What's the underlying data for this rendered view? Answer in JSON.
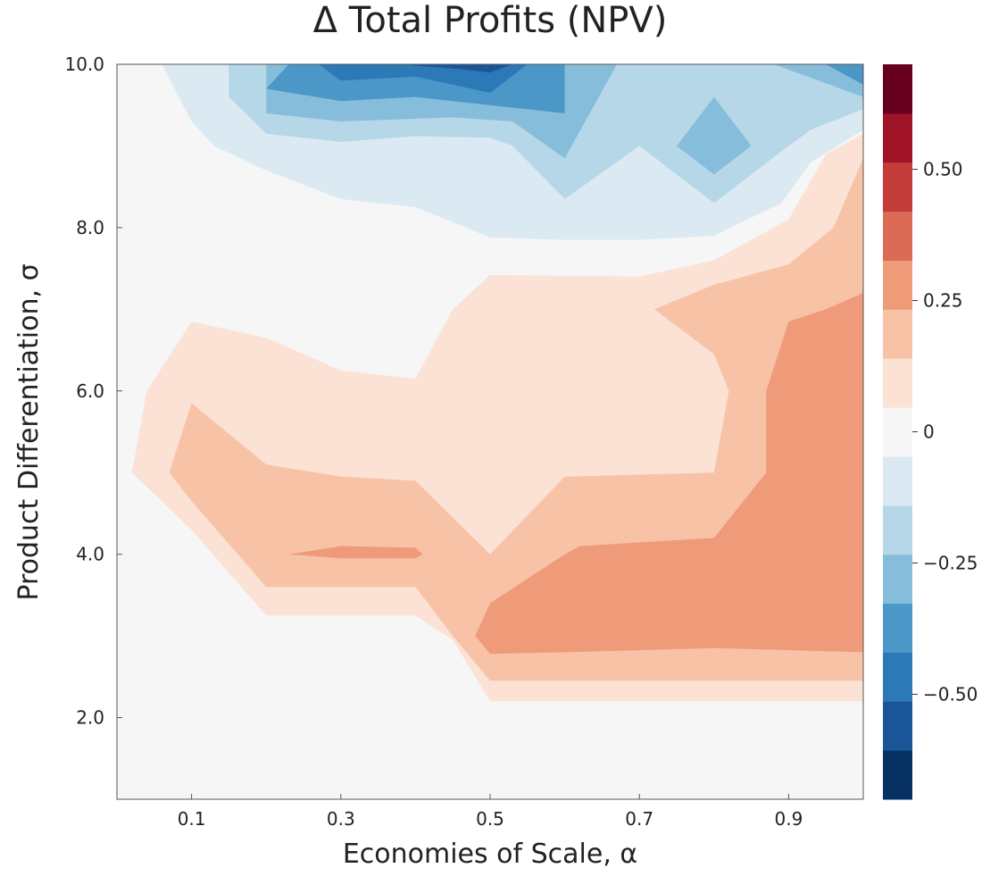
{
  "chart_data": {
    "type": "contour",
    "title": "Δ Total Profits (NPV)",
    "xlabel": "Economies of Scale, α",
    "ylabel": "Product Differentiation, σ",
    "xlim": [
      0.0,
      1.0
    ],
    "ylim": [
      1.0,
      10.0
    ],
    "x_ticks": [
      0.1,
      0.3,
      0.5,
      0.7,
      0.9
    ],
    "x_tick_labels": [
      "0.1",
      "0.3",
      "0.5",
      "0.7",
      "0.9"
    ],
    "y_ticks": [
      2.0,
      4.0,
      6.0,
      8.0,
      10.0
    ],
    "y_tick_labels": [
      "2.0",
      "4.0",
      "6.0",
      "8.0",
      "10.0"
    ],
    "colorbar": {
      "min": -0.7,
      "max": 0.7,
      "levels": [
        -0.7,
        -0.6,
        -0.5,
        -0.4,
        -0.3,
        -0.2,
        -0.1,
        0.0,
        0.1,
        0.2,
        0.3,
        0.4,
        0.5,
        0.6,
        0.7
      ],
      "colors": [
        "#053061",
        "#1a5598",
        "#2c79b7",
        "#4b97c8",
        "#86bddb",
        "#b6d7e8",
        "#dbeaf2",
        "#f6f6f6",
        "#fbe2d4",
        "#f8c2a7",
        "#ef9b7a",
        "#dc6b55",
        "#c23d3a",
        "#a11428",
        "#67001f"
      ],
      "ticks": [
        -0.5,
        -0.25,
        0,
        0.25,
        0.5
      ],
      "tick_labels": [
        "−0.50",
        "−0.25",
        "0",
        "0.25",
        "0.50"
      ]
    },
    "regions": [
      {
        "level": 0.0,
        "points": [
          [
            0.0,
            1.0
          ],
          [
            1.0,
            1.0
          ],
          [
            1.0,
            10.0
          ],
          [
            0.0,
            10.0
          ]
        ]
      },
      {
        "level": -0.1,
        "points": [
          [
            0.06,
            10.0
          ],
          [
            1.0,
            10.0
          ],
          [
            1.0,
            9.2
          ],
          [
            0.93,
            8.8
          ],
          [
            0.89,
            8.3
          ],
          [
            0.8,
            7.9
          ],
          [
            0.7,
            7.85
          ],
          [
            0.6,
            7.85
          ],
          [
            0.5,
            7.88
          ],
          [
            0.4,
            8.25
          ],
          [
            0.3,
            8.35
          ],
          [
            0.2,
            8.7
          ],
          [
            0.13,
            9.0
          ],
          [
            0.1,
            9.3
          ]
        ]
      },
      {
        "level": -0.2,
        "points": [
          [
            0.15,
            10.0
          ],
          [
            1.0,
            10.0
          ],
          [
            1.0,
            9.45
          ],
          [
            0.93,
            9.2
          ],
          [
            0.9,
            9.0
          ],
          [
            0.8,
            8.3
          ],
          [
            0.7,
            9.0
          ],
          [
            0.6,
            8.35
          ],
          [
            0.53,
            9.0
          ],
          [
            0.5,
            9.1
          ],
          [
            0.4,
            9.12
          ],
          [
            0.3,
            9.05
          ],
          [
            0.2,
            9.15
          ],
          [
            0.15,
            9.6
          ]
        ]
      },
      {
        "level": -0.3,
        "points": [
          [
            0.2,
            10.0
          ],
          [
            0.67,
            10.0
          ],
          [
            0.6,
            8.85
          ],
          [
            0.53,
            9.3
          ],
          [
            0.45,
            9.35
          ],
          [
            0.3,
            9.3
          ],
          [
            0.2,
            9.4
          ]
        ]
      },
      {
        "level": -0.3,
        "points": [
          [
            0.75,
            9.0
          ],
          [
            0.8,
            9.6
          ],
          [
            0.85,
            9.0
          ],
          [
            0.8,
            8.65
          ]
        ]
      },
      {
        "level": -0.3,
        "points": [
          [
            0.88,
            10.0
          ],
          [
            1.0,
            10.0
          ],
          [
            1.0,
            9.6
          ]
        ]
      },
      {
        "level": -0.4,
        "points": [
          [
            0.23,
            10.0
          ],
          [
            0.6,
            10.0
          ],
          [
            0.6,
            9.4
          ],
          [
            0.5,
            9.5
          ],
          [
            0.4,
            9.6
          ],
          [
            0.3,
            9.55
          ],
          [
            0.2,
            9.7
          ]
        ]
      },
      {
        "level": -0.4,
        "points": [
          [
            0.95,
            10.0
          ],
          [
            1.0,
            10.0
          ],
          [
            1.0,
            9.75
          ]
        ]
      },
      {
        "level": -0.5,
        "points": [
          [
            0.27,
            10.0
          ],
          [
            0.55,
            10.0
          ],
          [
            0.5,
            9.65
          ],
          [
            0.4,
            9.85
          ],
          [
            0.3,
            9.8
          ]
        ]
      },
      {
        "level": -0.6,
        "points": [
          [
            0.38,
            10.0
          ],
          [
            0.53,
            10.0
          ],
          [
            0.5,
            9.9
          ],
          [
            0.45,
            9.95
          ]
        ]
      },
      {
        "level": 0.1,
        "points": [
          [
            0.02,
            5.0
          ],
          [
            0.04,
            6.0
          ],
          [
            0.1,
            6.85
          ],
          [
            0.2,
            6.65
          ],
          [
            0.3,
            6.25
          ],
          [
            0.4,
            6.15
          ],
          [
            0.45,
            7.0
          ],
          [
            0.5,
            7.42
          ],
          [
            0.7,
            7.4
          ],
          [
            0.8,
            7.6
          ],
          [
            0.9,
            8.1
          ],
          [
            0.95,
            8.9
          ],
          [
            1.0,
            9.15
          ],
          [
            1.0,
            2.2
          ],
          [
            0.5,
            2.2
          ],
          [
            0.45,
            2.95
          ],
          [
            0.4,
            3.25
          ],
          [
            0.2,
            3.25
          ],
          [
            0.1,
            4.3
          ]
        ]
      },
      {
        "level": 0.2,
        "points": [
          [
            0.07,
            5.0
          ],
          [
            0.1,
            5.85
          ],
          [
            0.2,
            5.1
          ],
          [
            0.3,
            4.95
          ],
          [
            0.4,
            4.9
          ],
          [
            0.5,
            4.0
          ],
          [
            0.6,
            4.95
          ],
          [
            0.8,
            5.0
          ],
          [
            0.82,
            6.0
          ],
          [
            0.8,
            6.45
          ],
          [
            0.72,
            7.0
          ],
          [
            0.8,
            7.3
          ],
          [
            0.9,
            7.55
          ],
          [
            0.96,
            8.0
          ],
          [
            1.0,
            8.85
          ],
          [
            1.0,
            2.45
          ],
          [
            0.5,
            2.45
          ],
          [
            0.45,
            3.0
          ],
          [
            0.4,
            3.6
          ],
          [
            0.2,
            3.6
          ],
          [
            0.1,
            4.65
          ]
        ]
      },
      {
        "level": 0.3,
        "points": [
          [
            0.48,
            3.0
          ],
          [
            0.5,
            3.4
          ],
          [
            0.6,
            4.0
          ],
          [
            0.62,
            4.1
          ],
          [
            0.8,
            4.2
          ],
          [
            0.87,
            5.0
          ],
          [
            0.87,
            6.0
          ],
          [
            0.9,
            6.85
          ],
          [
            0.95,
            7.0
          ],
          [
            1.0,
            7.2
          ],
          [
            1.0,
            2.8
          ],
          [
            0.8,
            2.85
          ],
          [
            0.6,
            2.8
          ],
          [
            0.5,
            2.78
          ]
        ]
      },
      {
        "level": 0.3,
        "points": [
          [
            0.23,
            4.0
          ],
          [
            0.3,
            4.1
          ],
          [
            0.4,
            4.08
          ],
          [
            0.41,
            4.0
          ],
          [
            0.4,
            3.95
          ],
          [
            0.3,
            3.95
          ]
        ]
      }
    ]
  }
}
